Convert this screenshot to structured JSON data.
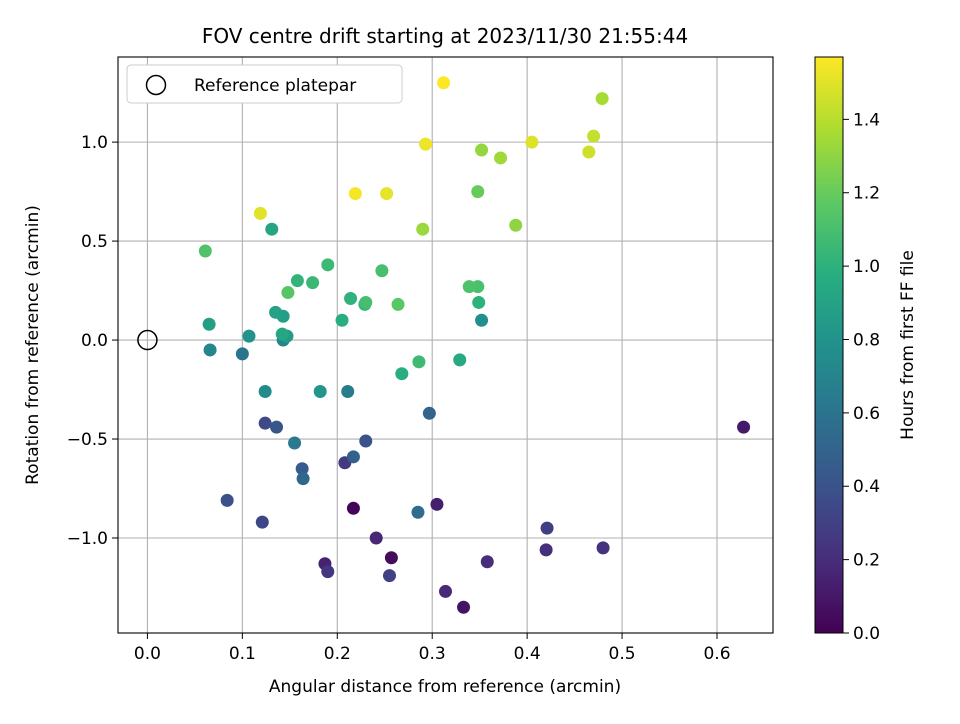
{
  "chart_data": {
    "type": "scatter",
    "title": "FOV centre drift starting at 2023/11/30 21:55:44",
    "xlabel": "Angular distance from reference (arcmin)",
    "ylabel": "Rotation from reference (arcmin)",
    "xlim": [
      -0.031,
      0.659
    ],
    "ylim": [
      -1.48,
      1.43
    ],
    "xticks": [
      0.0,
      0.1,
      0.2,
      0.3,
      0.4,
      0.5,
      0.6
    ],
    "xtick_labels": [
      "0.0",
      "0.1",
      "0.2",
      "0.3",
      "0.4",
      "0.5",
      "0.6"
    ],
    "yticks": [
      -1.0,
      -0.5,
      0.0,
      0.5,
      1.0
    ],
    "ytick_labels": [
      "−1.0",
      "−0.5",
      "0.0",
      "0.5",
      "1.0"
    ],
    "grid": true,
    "legend_position": "top-left",
    "legend": [
      {
        "label": "Reference platepar",
        "marker": "open-circle"
      }
    ],
    "reference_point": {
      "x": 0.0,
      "y": 0.0
    },
    "colorbar": {
      "label": "Hours from first FF file",
      "colormap": "viridis",
      "range": [
        0.0,
        1.57
      ],
      "ticks": [
        0.0,
        0.2,
        0.4,
        0.6,
        0.8,
        1.0,
        1.2,
        1.4
      ],
      "tick_labels": [
        "0.0",
        "0.2",
        "0.4",
        "0.6",
        "0.8",
        "1.0",
        "1.2",
        "1.4"
      ]
    },
    "points": [
      {
        "x": 0.217,
        "y": -0.85,
        "h": 0.02
      },
      {
        "x": 0.257,
        "y": -1.1,
        "h": 0.05
      },
      {
        "x": 0.333,
        "y": -1.35,
        "h": 0.08
      },
      {
        "x": 0.628,
        "y": -0.44,
        "h": 0.11
      },
      {
        "x": 0.305,
        "y": -0.83,
        "h": 0.13
      },
      {
        "x": 0.187,
        "y": -1.13,
        "h": 0.15
      },
      {
        "x": 0.241,
        "y": -1.0,
        "h": 0.17
      },
      {
        "x": 0.314,
        "y": -1.27,
        "h": 0.18
      },
      {
        "x": 0.358,
        "y": -1.12,
        "h": 0.2
      },
      {
        "x": 0.42,
        "y": -1.06,
        "h": 0.21
      },
      {
        "x": 0.48,
        "y": -1.05,
        "h": 0.23
      },
      {
        "x": 0.19,
        "y": -1.17,
        "h": 0.25
      },
      {
        "x": 0.208,
        "y": -0.62,
        "h": 0.27
      },
      {
        "x": 0.421,
        "y": -0.95,
        "h": 0.29
      },
      {
        "x": 0.255,
        "y": -1.19,
        "h": 0.31
      },
      {
        "x": 0.121,
        "y": -0.92,
        "h": 0.33
      },
      {
        "x": 0.124,
        "y": -0.42,
        "h": 0.35
      },
      {
        "x": 0.084,
        "y": -0.81,
        "h": 0.38
      },
      {
        "x": 0.23,
        "y": -0.51,
        "h": 0.4
      },
      {
        "x": 0.136,
        "y": -0.44,
        "h": 0.42
      },
      {
        "x": 0.163,
        "y": -0.65,
        "h": 0.45
      },
      {
        "x": 0.217,
        "y": -0.59,
        "h": 0.48
      },
      {
        "x": 0.297,
        "y": -0.37,
        "h": 0.5
      },
      {
        "x": 0.164,
        "y": -0.7,
        "h": 0.53
      },
      {
        "x": 0.285,
        "y": -0.87,
        "h": 0.56
      },
      {
        "x": 0.1,
        "y": -0.07,
        "h": 0.6
      },
      {
        "x": 0.155,
        "y": -0.52,
        "h": 0.63
      },
      {
        "x": 0.211,
        "y": -0.26,
        "h": 0.66
      },
      {
        "x": 0.143,
        "y": 0.0,
        "h": 0.7
      },
      {
        "x": 0.066,
        "y": -0.05,
        "h": 0.72
      },
      {
        "x": 0.124,
        "y": -0.26,
        "h": 0.75
      },
      {
        "x": 0.352,
        "y": 0.1,
        "h": 0.78
      },
      {
        "x": 0.107,
        "y": 0.02,
        "h": 0.8
      },
      {
        "x": 0.182,
        "y": -0.26,
        "h": 0.82
      },
      {
        "x": 0.147,
        "y": 0.02,
        "h": 0.85
      },
      {
        "x": 0.143,
        "y": 0.12,
        "h": 0.87
      },
      {
        "x": 0.065,
        "y": 0.08,
        "h": 0.88
      },
      {
        "x": 0.135,
        "y": 0.14,
        "h": 0.9
      },
      {
        "x": 0.131,
        "y": 0.56,
        "h": 0.92
      },
      {
        "x": 0.142,
        "y": 0.03,
        "h": 0.93
      },
      {
        "x": 0.329,
        "y": -0.1,
        "h": 0.95
      },
      {
        "x": 0.268,
        "y": -0.17,
        "h": 0.97
      },
      {
        "x": 0.205,
        "y": 0.1,
        "h": 0.98
      },
      {
        "x": 0.349,
        "y": 0.19,
        "h": 1.0
      },
      {
        "x": 0.214,
        "y": 0.21,
        "h": 1.01
      },
      {
        "x": 0.158,
        "y": 0.3,
        "h": 1.02
      },
      {
        "x": 0.229,
        "y": 0.18,
        "h": 1.04
      },
      {
        "x": 0.174,
        "y": 0.29,
        "h": 1.05
      },
      {
        "x": 0.19,
        "y": 0.38,
        "h": 1.06
      },
      {
        "x": 0.286,
        "y": -0.11,
        "h": 1.07
      },
      {
        "x": 0.23,
        "y": 0.19,
        "h": 1.09
      },
      {
        "x": 0.247,
        "y": 0.35,
        "h": 1.1
      },
      {
        "x": 0.348,
        "y": 0.27,
        "h": 1.11
      },
      {
        "x": 0.339,
        "y": 0.27,
        "h": 1.12
      },
      {
        "x": 0.061,
        "y": 0.45,
        "h": 1.13
      },
      {
        "x": 0.148,
        "y": 0.24,
        "h": 1.15
      },
      {
        "x": 0.264,
        "y": 0.18,
        "h": 1.16
      },
      {
        "x": 0.348,
        "y": 0.75,
        "h": 1.2
      },
      {
        "x": 0.388,
        "y": 0.58,
        "h": 1.3
      },
      {
        "x": 0.352,
        "y": 0.96,
        "h": 1.31
      },
      {
        "x": 0.29,
        "y": 0.56,
        "h": 1.33
      },
      {
        "x": 0.372,
        "y": 0.92,
        "h": 1.34
      },
      {
        "x": 0.479,
        "y": 1.22,
        "h": 1.36
      },
      {
        "x": 0.47,
        "y": 1.03,
        "h": 1.43
      },
      {
        "x": 0.465,
        "y": 0.95,
        "h": 1.45
      },
      {
        "x": 0.405,
        "y": 1.0,
        "h": 1.49
      },
      {
        "x": 0.119,
        "y": 0.64,
        "h": 1.5
      },
      {
        "x": 0.252,
        "y": 0.74,
        "h": 1.51
      },
      {
        "x": 0.293,
        "y": 0.99,
        "h": 1.53
      },
      {
        "x": 0.219,
        "y": 0.74,
        "h": 1.55
      },
      {
        "x": 0.312,
        "y": 1.3,
        "h": 1.57
      }
    ]
  }
}
